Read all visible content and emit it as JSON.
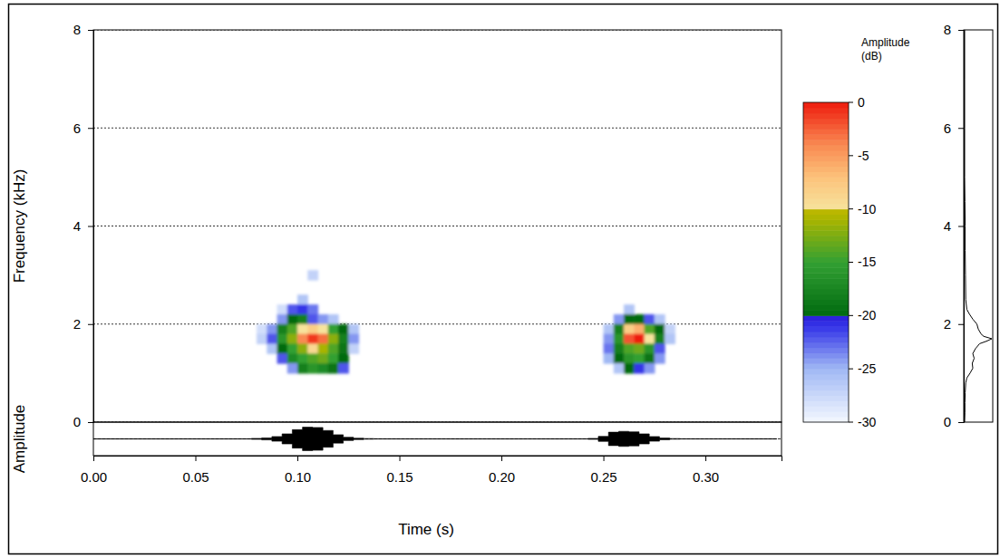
{
  "chart_data": [
    {
      "type": "spectrogram",
      "xlabel": "Time (s)",
      "ylabel": "Frequency (kHz)",
      "xlim": [
        0,
        0.3373
      ],
      "xticks": [
        {
          "value": 0,
          "label": "0.00"
        },
        {
          "value": 0.05,
          "label": "0.05"
        },
        {
          "value": 0.1,
          "label": "0.10"
        },
        {
          "value": 0.15,
          "label": "0.15"
        },
        {
          "value": 0.2,
          "label": "0.20"
        },
        {
          "value": 0.25,
          "label": "0.25"
        },
        {
          "value": 0.3,
          "label": "0.30"
        }
      ],
      "ylim": [
        0,
        8
      ],
      "yticks": [
        0,
        2,
        4,
        6,
        8
      ],
      "grid": true,
      "cells": [
        [
          0.1,
          2.4,
          -26
        ],
        [
          0.105,
          2.9,
          -27
        ],
        [
          0.09,
          2.2,
          -28
        ],
        [
          0.095,
          2.2,
          -22
        ],
        [
          0.1,
          2.2,
          -21
        ],
        [
          0.105,
          2.2,
          -23
        ],
        [
          0.09,
          2.0,
          -24
        ],
        [
          0.095,
          2.0,
          -20
        ],
        [
          0.1,
          2.0,
          -18
        ],
        [
          0.105,
          2.0,
          -22
        ],
        [
          0.11,
          2.0,
          -24
        ],
        [
          0.115,
          2.0,
          -26
        ],
        [
          0.08,
          1.8,
          -28
        ],
        [
          0.085,
          1.8,
          -24
        ],
        [
          0.09,
          1.8,
          -18
        ],
        [
          0.095,
          1.8,
          -14
        ],
        [
          0.1,
          1.8,
          -10
        ],
        [
          0.105,
          1.8,
          -8
        ],
        [
          0.11,
          1.8,
          -10
        ],
        [
          0.115,
          1.8,
          -15
        ],
        [
          0.12,
          1.8,
          -20
        ],
        [
          0.125,
          1.8,
          -26
        ],
        [
          0.08,
          1.6,
          -27
        ],
        [
          0.085,
          1.6,
          -22
        ],
        [
          0.09,
          1.6,
          -16
        ],
        [
          0.095,
          1.6,
          -12
        ],
        [
          0.1,
          1.6,
          -4
        ],
        [
          0.105,
          1.6,
          -1
        ],
        [
          0.11,
          1.6,
          -3
        ],
        [
          0.115,
          1.6,
          -12
        ],
        [
          0.12,
          1.6,
          -18
        ],
        [
          0.125,
          1.6,
          -24
        ],
        [
          0.085,
          1.4,
          -26
        ],
        [
          0.09,
          1.4,
          -20
        ],
        [
          0.095,
          1.4,
          -15
        ],
        [
          0.1,
          1.4,
          -12
        ],
        [
          0.105,
          1.4,
          -9
        ],
        [
          0.11,
          1.4,
          -11
        ],
        [
          0.115,
          1.4,
          -14
        ],
        [
          0.12,
          1.4,
          -19
        ],
        [
          0.125,
          1.4,
          -27
        ],
        [
          0.09,
          1.2,
          -22
        ],
        [
          0.095,
          1.2,
          -17
        ],
        [
          0.1,
          1.2,
          -15
        ],
        [
          0.105,
          1.2,
          -14
        ],
        [
          0.11,
          1.2,
          -13
        ],
        [
          0.115,
          1.2,
          -15
        ],
        [
          0.12,
          1.2,
          -20
        ],
        [
          0.095,
          1.0,
          -24
        ],
        [
          0.1,
          1.0,
          -18
        ],
        [
          0.105,
          1.0,
          -16
        ],
        [
          0.11,
          1.0,
          -17
        ],
        [
          0.115,
          1.0,
          -19
        ],
        [
          0.12,
          1.0,
          -22
        ],
        [
          0.26,
          2.2,
          -26
        ],
        [
          0.255,
          2.0,
          -24
        ],
        [
          0.26,
          2.0,
          -20
        ],
        [
          0.265,
          2.0,
          -20
        ],
        [
          0.27,
          2.0,
          -22
        ],
        [
          0.275,
          2.0,
          -26
        ],
        [
          0.25,
          1.8,
          -26
        ],
        [
          0.255,
          1.8,
          -18
        ],
        [
          0.26,
          1.8,
          -8
        ],
        [
          0.265,
          1.8,
          -6
        ],
        [
          0.27,
          1.8,
          -14
        ],
        [
          0.275,
          1.8,
          -20
        ],
        [
          0.28,
          1.8,
          -27
        ],
        [
          0.25,
          1.6,
          -24
        ],
        [
          0.255,
          1.6,
          -16
        ],
        [
          0.26,
          1.6,
          -2
        ],
        [
          0.265,
          1.6,
          0
        ],
        [
          0.27,
          1.6,
          -10
        ],
        [
          0.275,
          1.6,
          -18
        ],
        [
          0.28,
          1.6,
          -26
        ],
        [
          0.25,
          1.4,
          -23
        ],
        [
          0.255,
          1.4,
          -18
        ],
        [
          0.26,
          1.4,
          -14
        ],
        [
          0.265,
          1.4,
          -13
        ],
        [
          0.27,
          1.4,
          -16
        ],
        [
          0.275,
          1.4,
          -22
        ],
        [
          0.25,
          1.2,
          -25
        ],
        [
          0.255,
          1.2,
          -20
        ],
        [
          0.26,
          1.2,
          -16
        ],
        [
          0.265,
          1.2,
          -15
        ],
        [
          0.27,
          1.2,
          -19
        ],
        [
          0.275,
          1.2,
          -24
        ],
        [
          0.255,
          1.0,
          -26
        ],
        [
          0.26,
          1.0,
          -20
        ],
        [
          0.265,
          1.0,
          -21
        ],
        [
          0.27,
          1.0,
          -24
        ]
      ],
      "colorbar": {
        "title": "Amplitude (dB)",
        "lim": [
          -30,
          0
        ],
        "ticks": [
          0,
          -5,
          -10,
          -15,
          -20,
          -25,
          -30
        ]
      },
      "waveform": {
        "ylabel": "Amplitude",
        "ylim": [
          -1,
          1
        ],
        "x": [
          0,
          0.005,
          0.01,
          0.015,
          0.02,
          0.025,
          0.03,
          0.035,
          0.04,
          0.045,
          0.05,
          0.055,
          0.06,
          0.065,
          0.07,
          0.075,
          0.08,
          0.085,
          0.09,
          0.095,
          0.1,
          0.105,
          0.11,
          0.115,
          0.12,
          0.125,
          0.13,
          0.135,
          0.14,
          0.145,
          0.15,
          0.155,
          0.16,
          0.165,
          0.17,
          0.175,
          0.18,
          0.185,
          0.19,
          0.195,
          0.2,
          0.205,
          0.21,
          0.215,
          0.22,
          0.225,
          0.23,
          0.235,
          0.24,
          0.245,
          0.25,
          0.255,
          0.26,
          0.265,
          0.27,
          0.275,
          0.28,
          0.285,
          0.29,
          0.295,
          0.3,
          0.305,
          0.31,
          0.315,
          0.32,
          0.325,
          0.33,
          0.335
        ],
        "values": [
          0.01,
          0.01,
          0.01,
          0.01,
          0.01,
          0.01,
          0.01,
          0.01,
          0.01,
          0.01,
          0.01,
          0.01,
          0.01,
          0.01,
          0.01,
          0.01,
          0.03,
          0.06,
          0.14,
          0.3,
          0.55,
          0.7,
          0.68,
          0.5,
          0.25,
          0.1,
          0.04,
          0.02,
          0.01,
          0.01,
          0.01,
          0.01,
          0.01,
          0.01,
          0.01,
          0.01,
          0.01,
          0.01,
          0.01,
          0.01,
          0.01,
          0.01,
          0.01,
          0.01,
          0.01,
          0.01,
          0.01,
          0.01,
          0.01,
          0.03,
          0.15,
          0.4,
          0.45,
          0.42,
          0.3,
          0.14,
          0.05,
          0.02,
          0.01,
          0.01,
          0.01,
          0.01,
          0.01,
          0.01,
          0.01,
          0.01,
          0.01,
          0.01
        ]
      }
    },
    {
      "type": "line",
      "orientation": "horizontal",
      "tick_labels": "x",
      "xlim": [
        0,
        8
      ],
      "xticks": [
        0,
        2,
        4,
        6,
        8
      ],
      "ylim": [
        0,
        1
      ],
      "x": [
        0,
        0.2,
        0.4,
        0.6,
        0.8,
        0.9,
        1.0,
        1.1,
        1.2,
        1.3,
        1.4,
        1.5,
        1.6,
        1.65,
        1.7,
        1.75,
        1.8,
        1.9,
        2.0,
        2.1,
        2.2,
        2.3,
        2.5,
        3.0,
        3.5,
        4.0,
        4.5,
        5.0,
        6.0,
        7.0,
        8.0
      ],
      "values": [
        0,
        0.01,
        0.01,
        0.02,
        0.04,
        0.08,
        0.2,
        0.3,
        0.28,
        0.35,
        0.3,
        0.4,
        0.55,
        0.8,
        1.0,
        0.7,
        0.6,
        0.5,
        0.45,
        0.3,
        0.18,
        0.08,
        0.04,
        0.03,
        0.02,
        0.02,
        0.01,
        0,
        0,
        0,
        0
      ]
    }
  ]
}
